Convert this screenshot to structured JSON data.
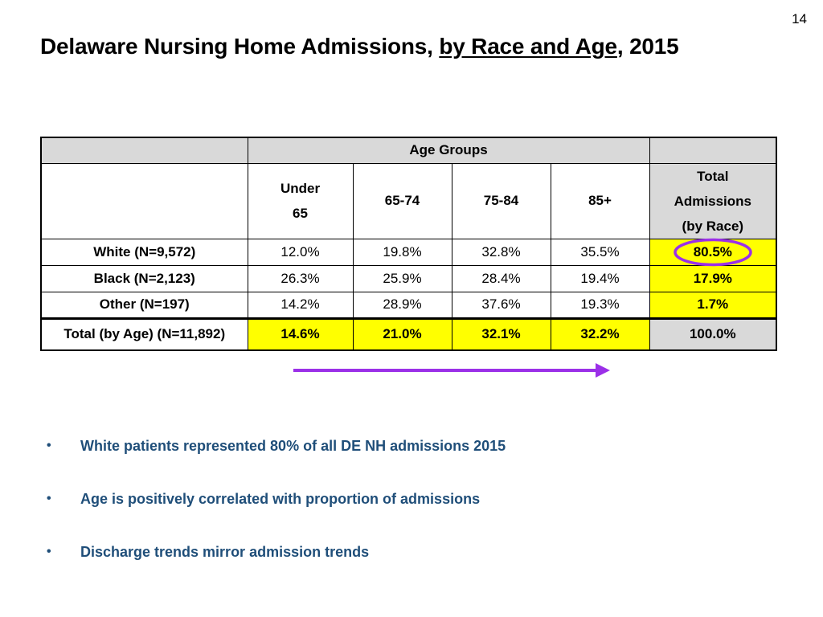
{
  "page_number": "14",
  "title": {
    "part1": "Delaware Nursing Home Admissions, ",
    "part2": "by Race and Age",
    "part3": ", 2015"
  },
  "table": {
    "group_header": "Age Groups",
    "columns": {
      "under65_line1": "Under",
      "under65_line2": "65",
      "c6574": "65-74",
      "c7584": "75-84",
      "c85": "85+",
      "total_line1": "Total",
      "total_line2": "Admissions",
      "total_line3": "(by Race)"
    },
    "rows": [
      {
        "label": "White (N=9,572)",
        "cells": [
          "12.0%",
          "19.8%",
          "32.8%",
          "35.5%"
        ],
        "total": "80.5%"
      },
      {
        "label": "Black (N=2,123)",
        "cells": [
          "26.3%",
          "25.9%",
          "28.4%",
          "19.4%"
        ],
        "total": "17.9%"
      },
      {
        "label": "Other (N=197)",
        "cells": [
          "14.2%",
          "28.9%",
          "37.6%",
          "19.3%"
        ],
        "total": "1.7%"
      }
    ],
    "total_row": {
      "label": "Total (by Age) (N=11,892)",
      "cells": [
        "14.6%",
        "21.0%",
        "32.1%",
        "32.2%"
      ],
      "total": "100.0%"
    }
  },
  "bullets": [
    "White patients represented 80% of all DE NH admissions 2015",
    "Age is positively correlated with proportion of admissions",
    "Discharge trends mirror admission trends"
  ],
  "colors": {
    "highlight": "#ffff00",
    "header_gray": "#d9d9d9",
    "annotation_purple": "#9b30e8",
    "bullet_text": "#1f4e79"
  }
}
